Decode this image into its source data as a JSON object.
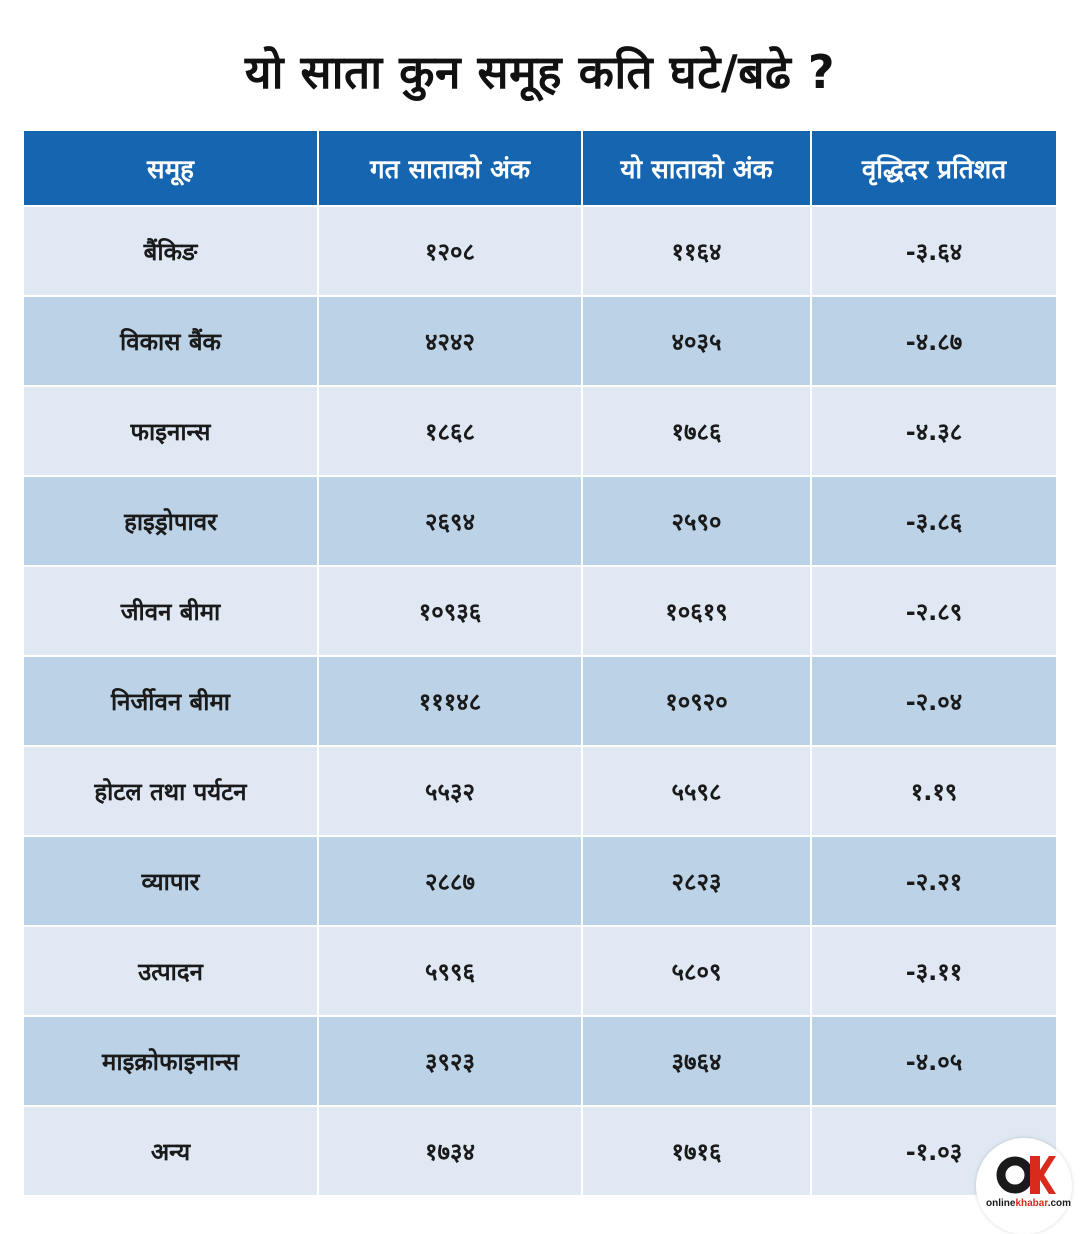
{
  "title": "यो साता कुन समूह कति घटे/बढे ?",
  "chart_data": {
    "type": "table",
    "columns": [
      "समूह",
      "गत साताको अंक",
      "यो साताको अंक",
      "वृद्धिदर प्रतिशत"
    ],
    "rows": [
      [
        "बैंकिङ",
        "१२०८",
        "११६४",
        "-३.६४"
      ],
      [
        "विकास बैंक",
        "४२४२",
        "४०३५",
        "-४.८७"
      ],
      [
        "फाइनान्स",
        "१८६८",
        "१७८६",
        "-४.३८"
      ],
      [
        "हाइड्रोपावर",
        "२६९४",
        "२५९०",
        "-३.८६"
      ],
      [
        "जीवन बीमा",
        "१०९३६",
        "१०६१९",
        "-२.८९"
      ],
      [
        "निर्जीवन बीमा",
        "१११४८",
        "१०९२०",
        "-२.०४"
      ],
      [
        "होटल तथा पर्यटन",
        "५५३२",
        "५५९८",
        "१.१९"
      ],
      [
        "व्यापार",
        "२८८७",
        "२८२३",
        "-२.२१"
      ],
      [
        "उत्पादन",
        "५९९६",
        "५८०९",
        "-३.११"
      ],
      [
        "माइक्रोफाइनान्स",
        "३९२३",
        "३७६४",
        "-४.०५"
      ],
      [
        "अन्य",
        "१७३४",
        "१७१६",
        "-१.०३"
      ]
    ]
  },
  "logo": {
    "prefix": "online",
    "accent": "khabar",
    "suffix": ".com"
  },
  "colors": {
    "header_bg": "#1565b0",
    "row_light": "#dfe8f3",
    "row_dark": "#bcd2e6",
    "logo_red": "#d92a1c"
  }
}
